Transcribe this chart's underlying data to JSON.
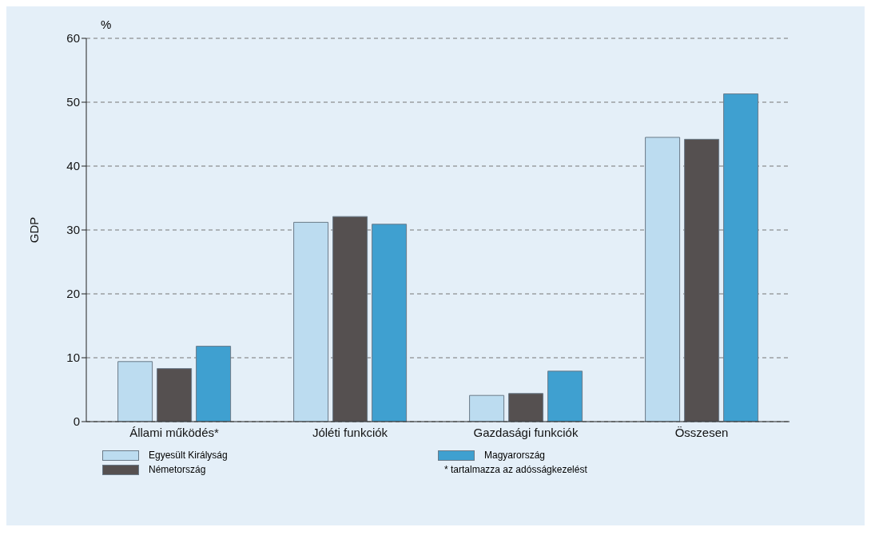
{
  "chart_data": {
    "type": "bar",
    "ylabel": "GDP",
    "categories": [
      "Állami működés*",
      "Jóléti funkciók",
      "Gazdasági funkciók",
      "Összesen"
    ],
    "series": [
      {
        "name": "Egyesült Királyság",
        "color": "#bcdcf0",
        "values": [
          9.4,
          31.2,
          4.1,
          44.5
        ]
      },
      {
        "name": "Németország",
        "color": "#555050",
        "values": [
          8.3,
          32.1,
          4.4,
          44.2
        ]
      },
      {
        "name": "Magyarország",
        "color": "#3fa0d0",
        "values": [
          11.8,
          30.9,
          7.9,
          51.3
        ]
      }
    ],
    "ylim": [
      0,
      60
    ],
    "yticks": [
      0,
      10,
      20,
      30,
      40,
      50,
      60
    ],
    "grid": "y",
    "legend": "bottom",
    "annotations": [
      "%",
      "* tartalmazza az adósságkezelést"
    ]
  }
}
